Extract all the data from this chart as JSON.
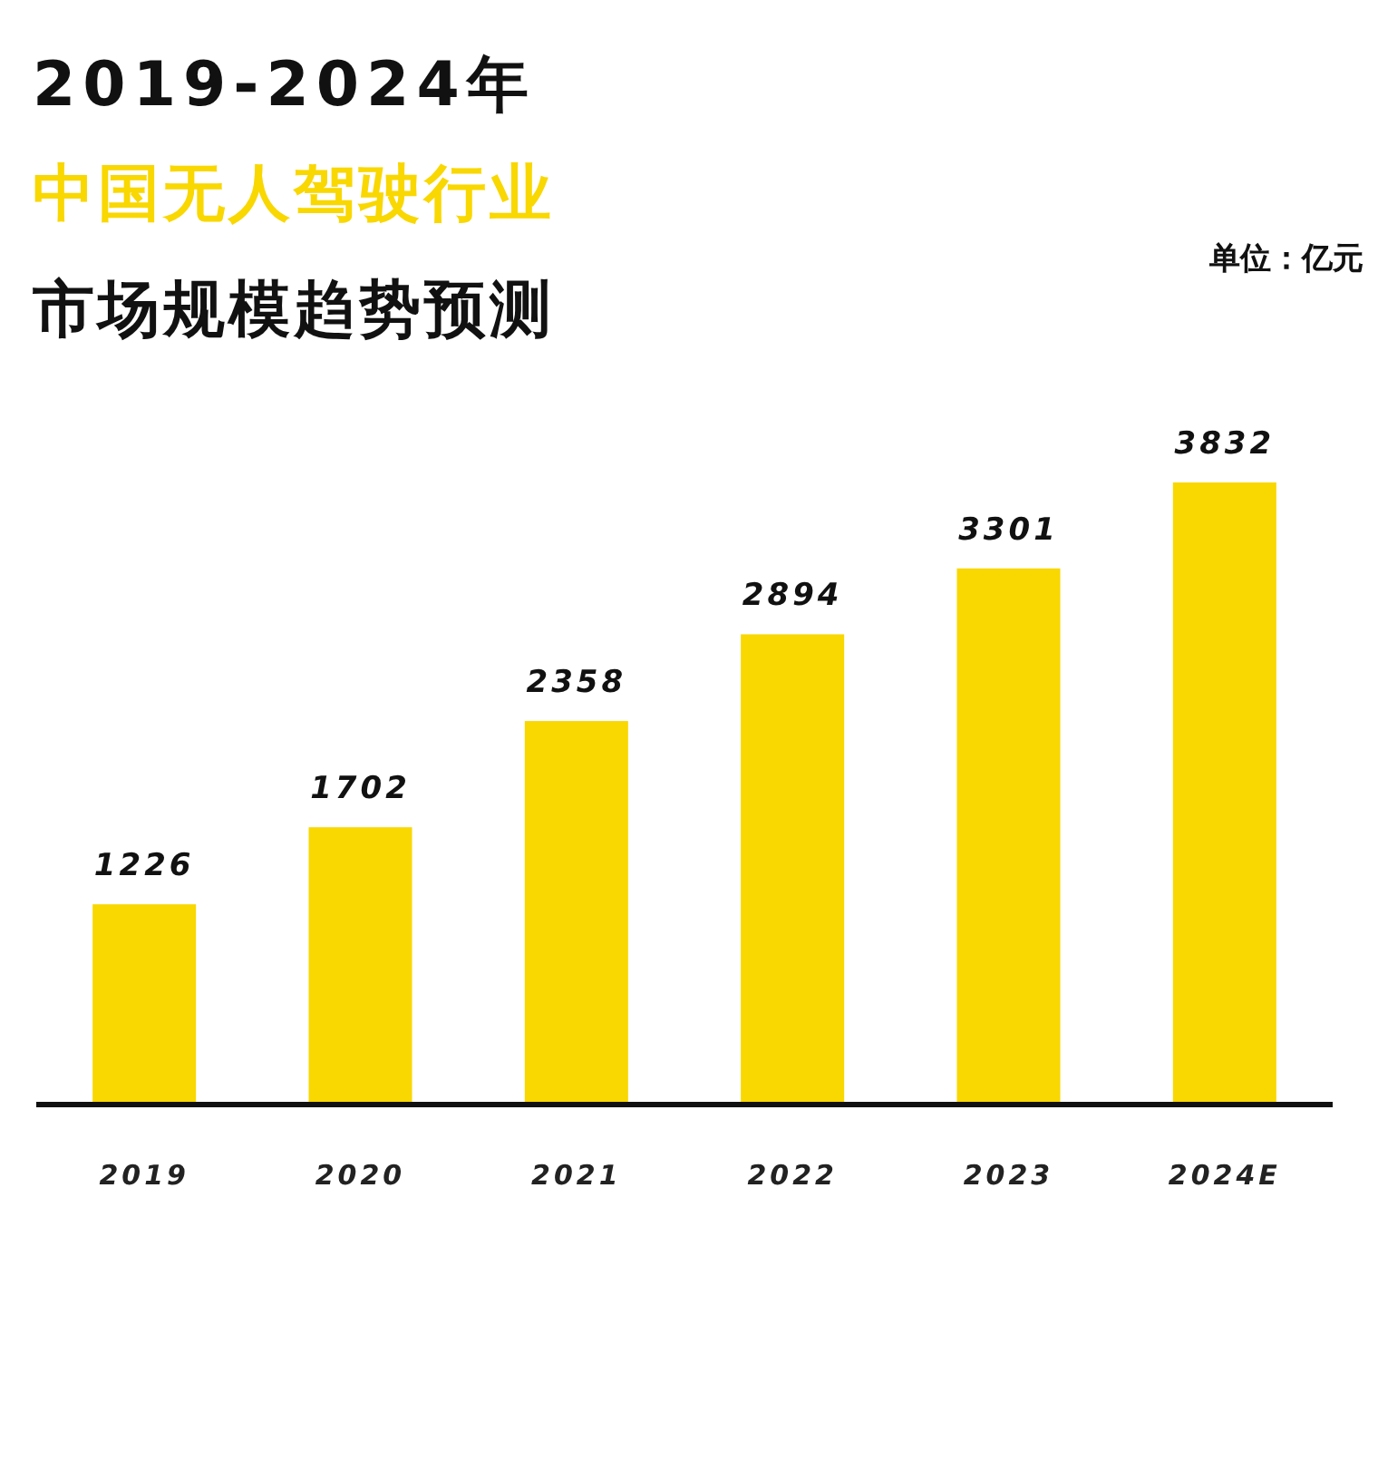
{
  "chart_data": {
    "type": "bar",
    "title": "2019-2024年",
    "subtitle": "中国无人驾驶行业",
    "annotations": [
      "市场规模趋势预测",
      "单位：亿元"
    ],
    "categories": [
      "2019",
      "2020",
      "2021",
      "2022",
      "2023",
      "2024E"
    ],
    "values": [
      1226,
      1702,
      2358,
      2894,
      3301,
      3832
    ],
    "color": "#f9d700",
    "data_labels": true
  }
}
